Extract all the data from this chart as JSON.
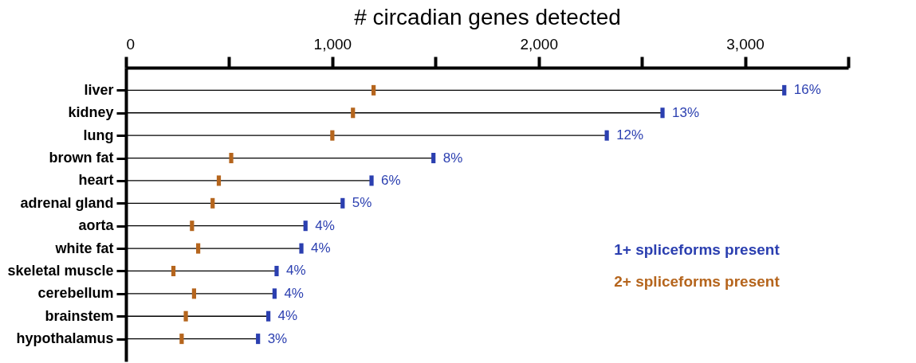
{
  "chart_data": {
    "type": "lollipop",
    "orientation": "horizontal",
    "xlabel": "# circadian genes detected",
    "categories": [
      "liver",
      "kidney",
      "lung",
      "brown fat",
      "heart",
      "adrenal gland",
      "aorta",
      "white fat",
      "skeletal muscle",
      "cerebellum",
      "brainstem",
      "hypothalamus"
    ],
    "series": [
      {
        "name": "1+ spliceforms present",
        "color": "#2b3fb0",
        "values": [
          3190,
          2600,
          2330,
          1490,
          1190,
          1050,
          870,
          850,
          730,
          720,
          690,
          640
        ]
      },
      {
        "name": "2+ spliceforms present",
        "color": "#b5651d",
        "type": "scatter",
        "values": [
          1200,
          1100,
          1000,
          510,
          450,
          420,
          320,
          350,
          230,
          330,
          290,
          270
        ]
      }
    ],
    "annotations": [
      {
        "text": "16%",
        "x": 3190,
        "y": "liver"
      },
      {
        "text": "13%",
        "x": 2600,
        "y": "kidney"
      },
      {
        "text": "12%",
        "x": 2330,
        "y": "lung"
      },
      {
        "text": "8%",
        "x": 1490,
        "y": "brown fat"
      },
      {
        "text": "6%",
        "x": 1190,
        "y": "heart"
      },
      {
        "text": "5%",
        "x": 1050,
        "y": "adrenal gland"
      },
      {
        "text": "4%",
        "x": 870,
        "y": "aorta"
      },
      {
        "text": "4%",
        "x": 850,
        "y": "white fat"
      },
      {
        "text": "4%",
        "x": 730,
        "y": "skeletal muscle"
      },
      {
        "text": "4%",
        "x": 720,
        "y": "cerebellum"
      },
      {
        "text": "4%",
        "x": 690,
        "y": "brainstem"
      },
      {
        "text": "3%",
        "x": 640,
        "y": "hypothalamus"
      }
    ],
    "xlim": [
      0,
      3500
    ],
    "xticks": [
      {
        "value": 0,
        "label": "0"
      },
      {
        "value": 500,
        "label": null
      },
      {
        "value": 1000,
        "label": "1,000"
      },
      {
        "value": 1500,
        "label": null
      },
      {
        "value": 2000,
        "label": "2,000"
      },
      {
        "value": 2500,
        "label": null
      },
      {
        "value": 3000,
        "label": "3,000"
      },
      {
        "value": 3500,
        "label": null
      }
    ]
  }
}
